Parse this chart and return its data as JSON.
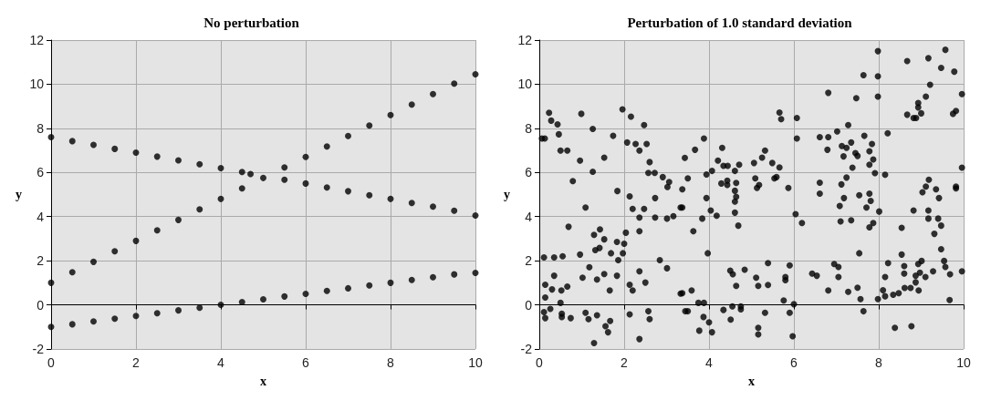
{
  "chart_data": [
    {
      "type": "scatter",
      "title": "No perturbation",
      "xlabel": "x",
      "ylabel": "y",
      "xlim": [
        0,
        10
      ],
      "xticks": [
        0,
        2,
        4,
        6,
        8,
        10
      ],
      "ylim": [
        -2,
        12
      ],
      "yticks": [
        -2,
        0,
        2,
        4,
        6,
        8,
        10,
        12
      ],
      "grid": true,
      "marker": "circle",
      "series": [
        {
          "color": "#000000",
          "x": [
            0,
            0.5,
            1,
            1.5,
            2,
            2.5,
            3,
            3.5,
            4,
            4.5,
            4.7,
            5.5,
            6,
            6.5,
            7,
            7.5,
            8,
            8.5,
            9,
            9.5,
            10
          ],
          "values": [
            7.6,
            7.42,
            7.25,
            7.07,
            6.9,
            6.72,
            6.55,
            6.37,
            6.2,
            6.02,
            5.93,
            5.67,
            5.5,
            5.32,
            5.15,
            4.97,
            4.8,
            4.62,
            4.45,
            4.27,
            4.05
          ]
        },
        {
          "color": "#000000",
          "x": [
            0,
            0.5,
            1,
            1.5,
            2,
            2.5,
            3,
            3.5,
            4,
            4.5,
            5,
            5.5,
            6,
            6.5,
            7,
            7.5,
            8,
            8.5,
            9,
            9.5,
            10
          ],
          "values": [
            1,
            1.48,
            1.95,
            2.43,
            2.9,
            3.38,
            3.85,
            4.33,
            4.8,
            5.28,
            5.75,
            6.23,
            6.7,
            7.18,
            7.65,
            8.13,
            8.6,
            9.08,
            9.55,
            10.03,
            10.45
          ]
        },
        {
          "color": "#000000",
          "x": [
            0,
            0.5,
            1,
            1.5,
            2,
            2.5,
            3,
            3.5,
            4,
            4.5,
            5,
            5.5,
            6,
            6.5,
            7,
            7.5,
            8,
            8.5,
            9,
            9.5,
            10
          ],
          "values": [
            -1,
            -0.88,
            -0.75,
            -0.63,
            -0.5,
            -0.38,
            -0.25,
            -0.13,
            0,
            0.13,
            0.25,
            0.38,
            0.5,
            0.63,
            0.75,
            0.88,
            1,
            1.13,
            1.25,
            1.38,
            1.45
          ]
        }
      ]
    },
    {
      "type": "scatter",
      "title": "Perturbation of 1.0 standard deviation",
      "xlabel": "x",
      "ylabel": "y",
      "xlim": [
        0,
        10
      ],
      "xticks": [
        0,
        2,
        4,
        6,
        8,
        10
      ],
      "ylim": [
        -2,
        12
      ],
      "yticks": [
        -2,
        0,
        2,
        4,
        6,
        8,
        10,
        12
      ],
      "grid": true,
      "marker": "circle",
      "series": [
        {
          "color": "#000000",
          "x": [
            0.23,
            0.99,
            1.96,
            2.16,
            0.28,
            0.43,
            2.47,
            1.26,
            0.06,
            0.13,
            0.46,
            1.74,
            2.07,
            2.27,
            2.53,
            2.36,
            0.5,
            0.66,
            1.53,
            0.96,
            2.6,
            1.26,
            2.57,
            2.72,
            2.91,
            3.06,
            3.02,
            0.79,
            1.84,
            2.13,
            2.73,
            1.09,
            2.2,
            2.47,
            2.36,
            2.73,
            3.01,
            3.16,
            3.33,
            0.69,
            1.43,
            1.29,
            1.53,
            2.04,
            2.36,
            1.83,
            2.0,
            1.42,
            1.32,
            1.69,
            1.97,
            1.86,
            0.11,
            0.35,
            0.55,
            0.96,
            2.84,
            3.01,
            1.18,
            0.35,
            1.02,
            1.36,
            1.53,
            1.83,
            2.36,
            2.5,
            0.14,
            0.3,
            0.52,
            0.66,
            1.66,
            2.13,
            2.2,
            3.33,
            0.14,
            0.5,
            0.26,
            0.11,
            0.14,
            0.53,
            0.53,
            0.74,
            1.09,
            1.16,
            1.36,
            2.13,
            2.57,
            2.6,
            1.67,
            1.56,
            1.62,
            1.29,
            2.36,
            3.44,
            5.66,
            5.7,
            6.07,
            6.07,
            3.88,
            3.67,
            3.43,
            4.31,
            4.21,
            4.34,
            4.44,
            4.61,
            4.71,
            4.07,
            3.94,
            3.5,
            5.06,
            5.25,
            5.32,
            5.49,
            5.66,
            5.09,
            5.18,
            5.13,
            5.54,
            5.59,
            5.87,
            4.29,
            4.43,
            4.43,
            4.64,
            4.61,
            4.64,
            4.61,
            4.61,
            4.69,
            3.37,
            3.94,
            3.37,
            4.04,
            4.18,
            3.84,
            3.63,
            6.04,
            6.19,
            3.97,
            4.5,
            4.56,
            4.84,
            5.39,
            5.9,
            5.11,
            5.8,
            5.8,
            6.43,
            6.54,
            4.64,
            5.16,
            5.39,
            3.37,
            3.59,
            3.75,
            3.88,
            3.5,
            4.34,
            4.55,
            4.75,
            4.75,
            5.32,
            5.76,
            6.0,
            5.9,
            3.87,
            4.0,
            4.51,
            3.77,
            4.07,
            5.16,
            5.16,
            5.97,
            7.98,
            9.57,
            8.67,
            9.17,
            7.64,
            7.98,
            9.47,
            9.78,
            9.21,
            6.81,
            7.47,
            7.98,
            9.11,
            9.96,
            8.93,
            8.93,
            9.0,
            8.67,
            8.82,
            8.88,
            9.75,
            9.82,
            7.28,
            7.02,
            6.61,
            6.81,
            8.21,
            7.66,
            6.79,
            7.13,
            7.24,
            7.35,
            7.84,
            7.78,
            7.45,
            7.5,
            7.17,
            7.87,
            7.78,
            7.38,
            7.91,
            8.15,
            9.96,
            7.24,
            7.12,
            6.61,
            9.18,
            9.11,
            9.03,
            9.35,
            9.42,
            9.82,
            9.82,
            6.61,
            7.18,
            7.54,
            7.78,
            7.81,
            7.71,
            7.08,
            8.01,
            8.82,
            9.17,
            9.17,
            9.4,
            9.47,
            7.1,
            7.35,
            7.78,
            7.87,
            8.54,
            9.31,
            9.47,
            7.54,
            8.54,
            6.95,
            7.05,
            7.05,
            8.22,
            8.6,
            8.6,
            8.93,
            9.01,
            8.97,
            9.1,
            9.28,
            9.54,
            9.57,
            9.68,
            9.96,
            8.87,
            8.15,
            8.87,
            6.81,
            7.28,
            7.5,
            7.57,
            7.98,
            8.1,
            8.15,
            8.34,
            8.47,
            8.61,
            8.75,
            8.94,
            9.67,
            7.64,
            8.38,
            8.77
          ],
          "values": [
            8.71,
            8.66,
            8.86,
            8.53,
            8.35,
            8.18,
            8.15,
            7.97,
            7.54,
            7.54,
            7.73,
            7.66,
            7.36,
            7.29,
            7.29,
            6.99,
            6.99,
            6.99,
            6.67,
            6.54,
            6.47,
            6.03,
            5.98,
            5.98,
            5.79,
            5.57,
            5.34,
            5.61,
            5.16,
            4.92,
            4.84,
            4.41,
            4.35,
            4.35,
            3.96,
            3.96,
            3.91,
            4.02,
            4.41,
            3.54,
            3.42,
            3.17,
            2.97,
            3.27,
            3.34,
            2.85,
            2.77,
            2.58,
            2.48,
            2.34,
            2.34,
            2.03,
            2.15,
            2.15,
            2.2,
            2.28,
            2.03,
            1.66,
            1.71,
            1.32,
            1.23,
            1.15,
            1.4,
            1.32,
            1.52,
            1.01,
            0.91,
            0.7,
            0.65,
            0.83,
            0.65,
            0.91,
            0.65,
            0.51,
            0.33,
            0.09,
            -0.18,
            -0.33,
            -0.6,
            -0.4,
            -0.55,
            -0.6,
            -0.36,
            -0.65,
            -0.47,
            -0.43,
            -0.29,
            -0.65,
            -0.73,
            -0.97,
            -1.24,
            -1.73,
            -1.55,
            -0.29,
            8.72,
            8.42,
            8.47,
            7.54,
            7.54,
            7.03,
            6.66,
            7.12,
            6.54,
            6.3,
            6.3,
            6.07,
            6.35,
            6.07,
            5.91,
            5.73,
            6.43,
            6.67,
            6.99,
            6.43,
            6.23,
            5.73,
            5.43,
            5.3,
            5.73,
            5.79,
            5.3,
            5.5,
            5.43,
            5.63,
            5.53,
            5.17,
            4.9,
            4.68,
            4.18,
            3.59,
            5.24,
            4.84,
            4.41,
            4.28,
            4.04,
            3.91,
            3.34,
            4.11,
            3.71,
            2.34,
            1.55,
            1.39,
            1.59,
            1.89,
            1.79,
            1.23,
            1.26,
            1.12,
            1.42,
            1.32,
            0.86,
            0.86,
            0.9,
            0.53,
            0.65,
            0.09,
            0.09,
            -0.29,
            -0.23,
            -0.07,
            -0.07,
            -0.2,
            -0.36,
            0.2,
            0.03,
            -0.36,
            -0.55,
            -0.79,
            -0.67,
            -1.17,
            -1.24,
            -1.04,
            -1.34,
            -1.42,
            11.5,
            11.56,
            11.05,
            11.18,
            10.41,
            10.36,
            10.74,
            10.57,
            9.98,
            9.61,
            9.37,
            9.44,
            9.44,
            9.55,
            9.15,
            8.95,
            8.68,
            8.62,
            8.47,
            8.47,
            8.66,
            8.79,
            8.15,
            7.86,
            7.6,
            7.6,
            7.78,
            7.66,
            7.03,
            7.2,
            7.12,
            7.36,
            7.29,
            6.96,
            6.88,
            6.75,
            6.73,
            6.59,
            6.35,
            6.22,
            5.97,
            5.9,
            6.22,
            5.77,
            5.46,
            5.54,
            5.67,
            5.36,
            5.1,
            5.24,
            4.84,
            5.36,
            5.28,
            5.04,
            4.84,
            4.97,
            5.04,
            4.71,
            4.41,
            4.48,
            4.23,
            4.28,
            4.28,
            3.91,
            3.91,
            3.59,
            3.78,
            3.83,
            3.51,
            3.71,
            3.49,
            3.22,
            2.52,
            2.34,
            2.28,
            1.85,
            1.72,
            1.26,
            1.89,
            1.76,
            1.42,
            1.85,
            1.99,
            1.46,
            1.26,
            1.52,
            1.99,
            1.72,
            1.39,
            1.52,
            1.32,
            1.26,
            1.02,
            0.65,
            0.59,
            0.78,
            0.26,
            0.26,
            0.66,
            0.39,
            0.46,
            0.53,
            0.77,
            0.77,
            0.65,
            0.22,
            -0.29,
            -1.04,
            -0.97
          ]
        }
      ]
    }
  ]
}
